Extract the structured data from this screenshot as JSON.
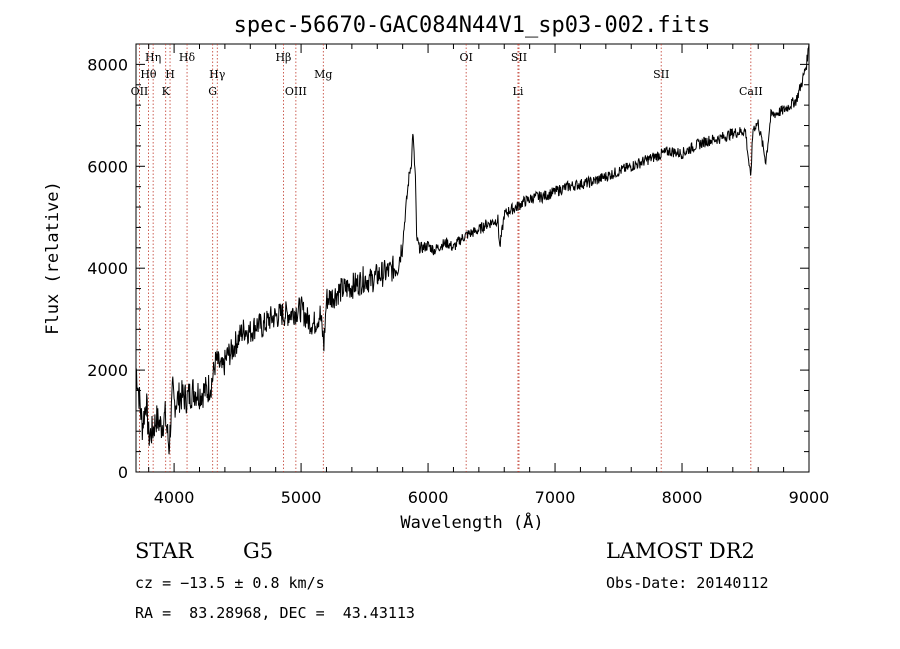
{
  "chart_data": {
    "type": "line",
    "title": "spec-56670-GAC084N44V1_sp03-002.fits",
    "xlabel": "Wavelength (Å)",
    "ylabel": "Flux (relative)",
    "xlim": [
      3700,
      9000
    ],
    "ylim": [
      0,
      8400
    ],
    "x_ticks": [
      4000,
      5000,
      6000,
      7000,
      8000,
      9000
    ],
    "y_ticks": [
      0,
      2000,
      4000,
      6000,
      8000
    ],
    "grid": false,
    "series": [
      {
        "x": [
          3700,
          3720,
          3750,
          3780,
          3800,
          3830,
          3860,
          3900,
          3930,
          3960,
          3990,
          4000,
          4050,
          4100,
          4150,
          4200,
          4260,
          4300,
          4330,
          4380,
          4420,
          4450,
          4500,
          4550,
          4600,
          4650,
          4700,
          4750,
          4800,
          4850,
          4900,
          4950,
          5000,
          5050,
          5100,
          5150,
          5180,
          5200,
          5250,
          5300,
          5350,
          5400,
          5450,
          5500,
          5550,
          5600,
          5650,
          5700,
          5760,
          5800,
          5830,
          5850,
          5870,
          5880,
          5890,
          5900,
          5910,
          5930,
          5960,
          6000,
          6050,
          6100,
          6150,
          6200,
          6250,
          6300,
          6350,
          6400,
          6450,
          6500,
          6550,
          6565,
          6600,
          6650,
          6700,
          6750,
          6800,
          6850,
          6900,
          6950,
          7000,
          7100,
          7200,
          7300,
          7400,
          7500,
          7600,
          7700,
          7800,
          7850,
          7900,
          8000,
          8100,
          8200,
          8300,
          8400,
          8500,
          8540,
          8560,
          8600,
          8660,
          8700,
          8800,
          8900,
          8950,
          8980,
          9000
        ],
        "y": [
          2050,
          1600,
          900,
          1400,
          700,
          800,
          1050,
          900,
          1100,
          500,
          1600,
          1350,
          1500,
          1450,
          1600,
          1550,
          1600,
          1800,
          2200,
          2000,
          2300,
          2350,
          2600,
          2800,
          2750,
          2900,
          2850,
          3000,
          3050,
          3100,
          3100,
          3150,
          3200,
          3000,
          2900,
          3100,
          2500,
          3400,
          3450,
          3550,
          3600,
          3650,
          3700,
          3800,
          3750,
          3850,
          3900,
          3950,
          4050,
          4500,
          5300,
          5800,
          6100,
          6700,
          6200,
          5800,
          4600,
          4400,
          4400,
          4450,
          4350,
          4450,
          4500,
          4400,
          4550,
          4650,
          4700,
          4750,
          4850,
          4900,
          4950,
          4400,
          5050,
          5150,
          5200,
          5300,
          5350,
          5400,
          5400,
          5450,
          5500,
          5600,
          5650,
          5700,
          5800,
          5900,
          6000,
          6100,
          6200,
          6250,
          6300,
          6250,
          6400,
          6500,
          6550,
          6650,
          6700,
          5750,
          6750,
          6850,
          6100,
          7000,
          7100,
          7300,
          7700,
          8000,
          8400
        ]
      }
    ],
    "line_markers": [
      {
        "label": "OII",
        "x": 3727,
        "row": 3
      },
      {
        "label": "Hθ",
        "x": 3798,
        "row": 2
      },
      {
        "label": "Hη",
        "x": 3835,
        "row": 1
      },
      {
        "label": "K",
        "x": 3934,
        "row": 3
      },
      {
        "label": "H",
        "x": 3968,
        "row": 2
      },
      {
        "label": "Hδ",
        "x": 4102,
        "row": 1
      },
      {
        "label": "G",
        "x": 4304,
        "row": 3
      },
      {
        "label": "Hγ",
        "x": 4340,
        "row": 2
      },
      {
        "label": "Hβ",
        "x": 4861,
        "row": 1
      },
      {
        "label": "OIII",
        "x": 4959,
        "row": 3
      },
      {
        "label": "Mg",
        "x": 5175,
        "row": 2
      },
      {
        "label": "OI",
        "x": 6300,
        "row": 1
      },
      {
        "label": "SII",
        "x": 6716,
        "row": 1
      },
      {
        "label": "Li",
        "x": 6708,
        "row": 3
      },
      {
        "label": "SII",
        "x": 7836,
        "row": 2
      },
      {
        "label": "CaII",
        "x": 8542,
        "row": 3
      }
    ]
  },
  "info": {
    "object_type": "STAR",
    "subclass": "G5",
    "survey": "LAMOST DR2",
    "redshift": "cz = −13.5 ± 0.8 km/s",
    "obs_date": "Obs-Date: 20140112",
    "coords": "RA =  83.28968, DEC =  43.43113"
  }
}
